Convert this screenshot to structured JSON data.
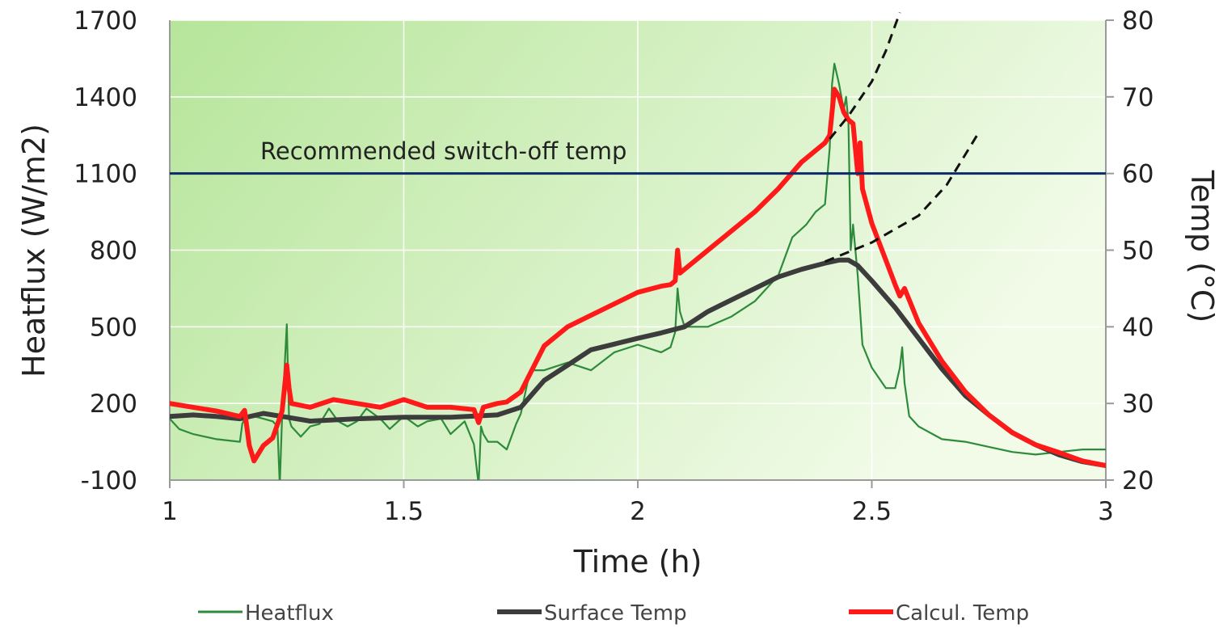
{
  "chart_data": {
    "type": "line",
    "xlabel": "Time (h)",
    "ylabel_left": "Heatflux (W/m2)",
    "ylabel_right": "Temp (°C)",
    "xlim": [
      1,
      3
    ],
    "ylim_left": [
      -100,
      1700
    ],
    "ylim_right": [
      20,
      80
    ],
    "x_ticks": [
      "1",
      "1.5",
      "2",
      "2.5",
      "3"
    ],
    "y_ticks_left": [
      "1700",
      "1400",
      "1100",
      "800",
      "500",
      "200",
      "-100"
    ],
    "y_ticks_right": [
      "80",
      "70",
      "60",
      "50",
      "40",
      "30",
      "20"
    ],
    "grid": true,
    "legend_position": "bottom",
    "reference_line": {
      "label": "Recommended switch-off temp",
      "value_left": 1100,
      "value_right": 60,
      "color": "#0d2b6b"
    },
    "colors": {
      "heatflux": "#2e8b3c",
      "surface": "#3c3c3c",
      "calculated": "#ff1a1a",
      "extrapolation": "#111111",
      "background_left": "#b6e59a",
      "background_right": "#f1fbe8"
    },
    "series": [
      {
        "name": "Heatflux",
        "axis": "left",
        "x": [
          1.0,
          1.02,
          1.05,
          1.1,
          1.15,
          1.155,
          1.16,
          1.18,
          1.2,
          1.22,
          1.23,
          1.235,
          1.24,
          1.25,
          1.255,
          1.26,
          1.28,
          1.3,
          1.32,
          1.34,
          1.36,
          1.38,
          1.4,
          1.42,
          1.45,
          1.47,
          1.5,
          1.53,
          1.55,
          1.58,
          1.6,
          1.63,
          1.65,
          1.66,
          1.665,
          1.67,
          1.68,
          1.7,
          1.72,
          1.74,
          1.75,
          1.77,
          1.8,
          1.85,
          1.9,
          1.95,
          2.0,
          2.05,
          2.07,
          2.08,
          2.085,
          2.09,
          2.1,
          2.15,
          2.2,
          2.25,
          2.3,
          2.33,
          2.36,
          2.38,
          2.4,
          2.41,
          2.415,
          2.42,
          2.43,
          2.44,
          2.445,
          2.45,
          2.455,
          2.46,
          2.47,
          2.48,
          2.5,
          2.53,
          2.55,
          2.56,
          2.565,
          2.57,
          2.58,
          2.6,
          2.65,
          2.7,
          2.75,
          2.8,
          2.85,
          2.9,
          2.95,
          3.0
        ],
        "y": [
          140,
          100,
          80,
          60,
          50,
          120,
          140,
          150,
          140,
          130,
          110,
          -120,
          150,
          510,
          140,
          110,
          70,
          110,
          120,
          180,
          130,
          110,
          130,
          180,
          140,
          100,
          150,
          110,
          130,
          140,
          80,
          130,
          40,
          -120,
          110,
          80,
          50,
          50,
          20,
          120,
          160,
          330,
          330,
          360,
          330,
          400,
          430,
          400,
          420,
          480,
          650,
          560,
          500,
          500,
          540,
          600,
          700,
          850,
          900,
          950,
          980,
          1200,
          1450,
          1530,
          1450,
          1350,
          1400,
          1300,
          800,
          900,
          700,
          430,
          340,
          260,
          260,
          340,
          420,
          280,
          150,
          110,
          60,
          50,
          30,
          10,
          0,
          10,
          20,
          20
        ]
      },
      {
        "name": "Surface Temp",
        "axis": "right",
        "x": [
          1.0,
          1.05,
          1.1,
          1.15,
          1.2,
          1.25,
          1.3,
          1.4,
          1.5,
          1.6,
          1.7,
          1.75,
          1.8,
          1.85,
          1.9,
          2.0,
          2.05,
          2.1,
          2.15,
          2.2,
          2.25,
          2.3,
          2.35,
          2.4,
          2.43,
          2.45,
          2.47,
          2.5,
          2.55,
          2.6,
          2.65,
          2.7,
          2.75,
          2.8,
          2.85,
          2.9,
          2.95,
          3.0
        ],
        "y": [
          28.3,
          28.5,
          28.3,
          28.0,
          28.7,
          28.2,
          27.7,
          28.0,
          28.2,
          28.2,
          28.5,
          29.5,
          33,
          35,
          37,
          38.5,
          39.2,
          40,
          42,
          43.5,
          45,
          46.5,
          47.5,
          48.3,
          48.7,
          48.7,
          48,
          46,
          42.5,
          38.5,
          34.5,
          31,
          28.5,
          26.2,
          24.6,
          23.3,
          22.4,
          21.9
        ]
      },
      {
        "name": "Calcul. Temp",
        "axis": "right",
        "x": [
          1.0,
          1.05,
          1.1,
          1.15,
          1.16,
          1.17,
          1.18,
          1.2,
          1.22,
          1.24,
          1.245,
          1.25,
          1.255,
          1.26,
          1.3,
          1.35,
          1.4,
          1.45,
          1.5,
          1.55,
          1.6,
          1.65,
          1.66,
          1.67,
          1.7,
          1.72,
          1.75,
          1.8,
          1.85,
          1.9,
          1.95,
          2.0,
          2.05,
          2.07,
          2.08,
          2.085,
          2.09,
          2.1,
          2.15,
          2.2,
          2.25,
          2.3,
          2.35,
          2.4,
          2.41,
          2.42,
          2.43,
          2.44,
          2.45,
          2.46,
          2.47,
          2.475,
          2.48,
          2.5,
          2.55,
          2.56,
          2.57,
          2.6,
          2.65,
          2.7,
          2.75,
          2.8,
          2.85,
          2.9,
          2.95,
          3.0
        ],
        "y": [
          30,
          29.5,
          29,
          28.3,
          29.1,
          24.5,
          22.5,
          24.5,
          25.5,
          29,
          32,
          35,
          32,
          30,
          29.5,
          30.5,
          30,
          29.5,
          30.5,
          29.5,
          29.5,
          29.2,
          27.5,
          29.5,
          30,
          30.2,
          31.5,
          37.5,
          40,
          41.5,
          43,
          44.5,
          45.3,
          45.5,
          46,
          50,
          47,
          47.5,
          50,
          52.5,
          55,
          58,
          61.5,
          64,
          65,
          71,
          70,
          68,
          67,
          66.5,
          60,
          64,
          58,
          53.5,
          45.5,
          44,
          45,
          40.5,
          35.5,
          31.5,
          28.5,
          26.2,
          24.6,
          23.6,
          22.5,
          21.9
        ]
      }
    ],
    "extrapolations": [
      {
        "axis": "right",
        "x": [
          2.41,
          2.45,
          2.5,
          2.53,
          2.56
        ],
        "y": [
          64.5,
          67.5,
          72,
          76,
          81
        ]
      },
      {
        "axis": "right",
        "x": [
          2.4,
          2.5,
          2.6,
          2.66,
          2.73
        ],
        "y": [
          48.5,
          51,
          54.5,
          58.5,
          65.5
        ]
      }
    ]
  }
}
